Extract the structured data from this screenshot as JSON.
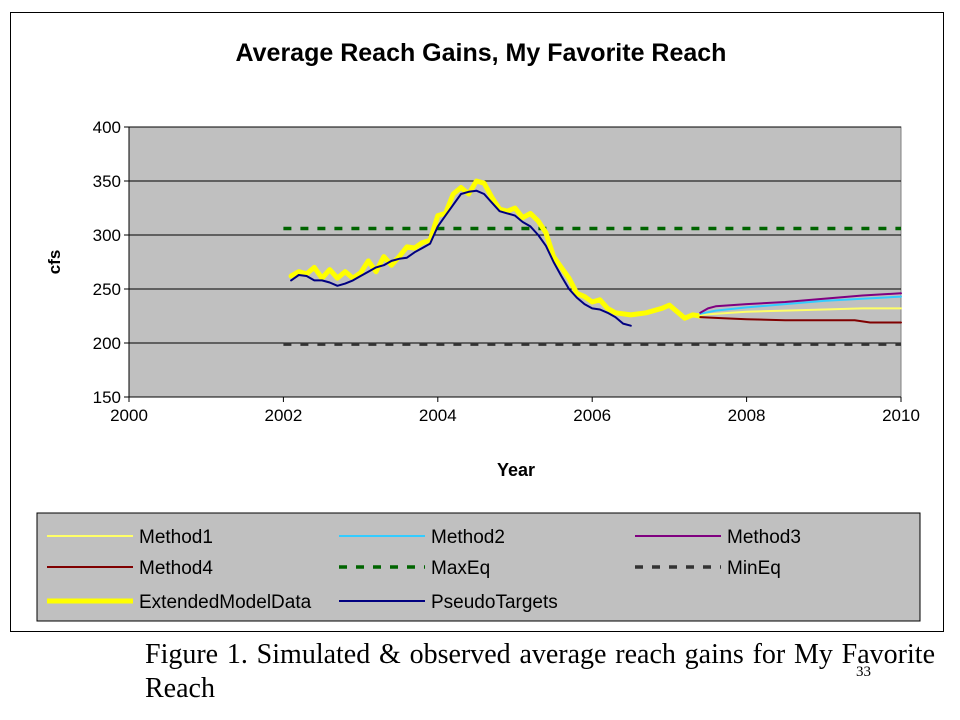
{
  "chart_data": {
    "type": "line",
    "title": "Average Reach Gains, My Favorite Reach",
    "xlabel": "Year",
    "ylabel": "cfs",
    "xlim": [
      2000,
      2010
    ],
    "ylim": [
      150,
      400
    ],
    "x_ticks": [
      "2000",
      "2002",
      "2004",
      "2006",
      "2008",
      "2010"
    ],
    "y_ticks": [
      "400",
      "350",
      "300",
      "250",
      "200",
      "150"
    ],
    "grid": "horizontal",
    "plot_background": "#c0c0c0",
    "legend_position": "bottom",
    "series": [
      {
        "name": "Method1",
        "color": "#ffff66",
        "style": "solid",
        "x": [
          2007.4,
          2007.8,
          2008.0,
          2008.5,
          2009.0,
          2009.5,
          2010.0
        ],
        "y": [
          226,
          228,
          229,
          230,
          231,
          232,
          232
        ]
      },
      {
        "name": "Method2",
        "color": "#33ccff",
        "style": "solid",
        "x": [
          2007.4,
          2007.6,
          2008.0,
          2008.5,
          2009.0,
          2009.5,
          2010.0
        ],
        "y": [
          227,
          230,
          233,
          236,
          239,
          241,
          243
        ]
      },
      {
        "name": "Method3",
        "color": "#800080",
        "style": "solid",
        "x": [
          2007.4,
          2007.5,
          2007.6,
          2008.0,
          2008.5,
          2009.0,
          2009.5,
          2010.0
        ],
        "y": [
          228,
          232,
          234,
          236,
          238,
          241,
          244,
          246
        ]
      },
      {
        "name": "Method4",
        "color": "#800000",
        "style": "solid",
        "x": [
          2007.4,
          2007.7,
          2008.0,
          2008.5,
          2009.0,
          2009.4,
          2009.6,
          2010.0
        ],
        "y": [
          224,
          223,
          222,
          221,
          221,
          221,
          219,
          219
        ]
      },
      {
        "name": "MaxEq",
        "color": "#006400",
        "style": "dashed",
        "x": [
          2002.0,
          2010.0
        ],
        "y": [
          306,
          306
        ]
      },
      {
        "name": "MinEq",
        "color": "#333333",
        "style": "dashed",
        "x": [
          2002.0,
          2010.0
        ],
        "y": [
          199,
          199
        ]
      },
      {
        "name": "ExtendedModelData",
        "color": "#ffff00",
        "style": "thick",
        "x": [
          2002.1,
          2002.2,
          2002.3,
          2002.4,
          2002.5,
          2002.6,
          2002.7,
          2002.8,
          2002.9,
          2003.0,
          2003.1,
          2003.2,
          2003.3,
          2003.4,
          2003.5,
          2003.6,
          2003.7,
          2003.8,
          2003.9,
          2004.0,
          2004.1,
          2004.2,
          2004.3,
          2004.4,
          2004.5,
          2004.6,
          2004.7,
          2004.8,
          2004.9,
          2005.0,
          2005.1,
          2005.2,
          2005.3,
          2005.4,
          2005.5,
          2005.6,
          2005.7,
          2005.8,
          2005.9,
          2006.0,
          2006.1,
          2006.2,
          2006.3,
          2006.5,
          2006.7,
          2006.9,
          2007.0,
          2007.1,
          2007.2,
          2007.3,
          2007.4
        ],
        "y": [
          262,
          266,
          264,
          270,
          260,
          268,
          260,
          266,
          260,
          265,
          276,
          266,
          280,
          272,
          280,
          289,
          288,
          293,
          295,
          318,
          320,
          338,
          344,
          338,
          350,
          348,
          335,
          324,
          322,
          325,
          316,
          320,
          313,
          302,
          280,
          270,
          260,
          246,
          243,
          238,
          240,
          232,
          228,
          226,
          228,
          232,
          235,
          229,
          223,
          226,
          225
        ]
      },
      {
        "name": "PseudoTargets",
        "color": "#000080",
        "style": "solid",
        "x": [
          2002.1,
          2002.2,
          2002.3,
          2002.4,
          2002.5,
          2002.6,
          2002.7,
          2002.8,
          2002.9,
          2003.0,
          2003.1,
          2003.2,
          2003.3,
          2003.4,
          2003.5,
          2003.6,
          2003.7,
          2003.8,
          2003.9,
          2004.0,
          2004.1,
          2004.2,
          2004.3,
          2004.4,
          2004.5,
          2004.6,
          2004.7,
          2004.8,
          2004.9,
          2005.0,
          2005.1,
          2005.2,
          2005.3,
          2005.4,
          2005.5,
          2005.6,
          2005.7,
          2005.8,
          2005.9,
          2006.0,
          2006.1,
          2006.2,
          2006.3,
          2006.4,
          2006.5
        ],
        "y": [
          258,
          263,
          262,
          258,
          258,
          256,
          253,
          255,
          258,
          262,
          266,
          270,
          272,
          276,
          278,
          279,
          284,
          288,
          292,
          308,
          318,
          328,
          338,
          340,
          341,
          338,
          330,
          322,
          320,
          318,
          312,
          308,
          300,
          290,
          275,
          262,
          250,
          242,
          236,
          232,
          231,
          228,
          224,
          218,
          216
        ]
      }
    ]
  },
  "caption": "Figure 1.  Simulated & observed average reach gains for My Favorite Reach",
  "page_number": "33"
}
